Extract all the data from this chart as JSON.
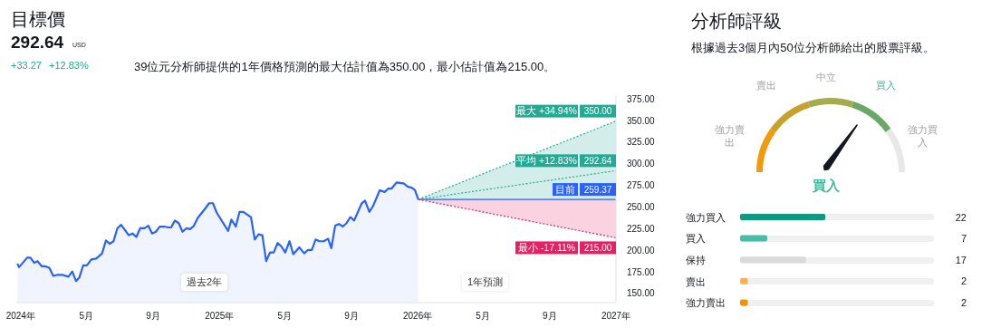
{
  "chart_data": [
    {
      "type": "line",
      "title": "目標價",
      "subtitle": "39位元分析師提供的1年價格預測的最大估計值為350.00，最小估計值為215.00。",
      "annotations": [
        "292.64",
        "USD",
        "+33.27",
        "+12.83%",
        "過去2年",
        "1年預測"
      ],
      "legend": "right",
      "xlim": [
        "2023-12-24",
        "2027-01-01"
      ],
      "xticks": [
        {
          "value": "2024-01-01",
          "label": "2024年"
        },
        {
          "value": "2024-05-01",
          "label": "5月"
        },
        {
          "value": "2024-09-01",
          "label": "9月"
        },
        {
          "value": "2025-01-01",
          "label": "2025年"
        },
        {
          "value": "2025-05-01",
          "label": "5月"
        },
        {
          "value": "2025-09-01",
          "label": "9月"
        },
        {
          "value": "2026-01-01",
          "label": "2026年"
        },
        {
          "value": "2026-05-01",
          "label": "5月"
        },
        {
          "value": "2026-09-01",
          "label": "9月"
        },
        {
          "value": "2027-01-01",
          "label": "2027年"
        }
      ],
      "ylim": [
        140,
        380
      ],
      "yticks": [
        {
          "value": 150,
          "label": "150.00"
        },
        {
          "value": 175,
          "label": "175.00"
        },
        {
          "value": 200,
          "label": "200.00"
        },
        {
          "value": 225,
          "label": "225.00"
        },
        {
          "value": 250,
          "label": "250.00"
        },
        {
          "value": 275,
          "label": "275.00"
        },
        {
          "value": 300,
          "label": "300.00"
        },
        {
          "value": 325,
          "label": "325.00"
        },
        {
          "value": 350,
          "label": "350.00"
        },
        {
          "value": 375,
          "label": "375.00"
        }
      ],
      "series": [
        {
          "type": "area",
          "color": "#2962ff",
          "x": [
            "2023-12-26",
            "2023-12-29",
            "2024-01-13",
            "2024-01-19",
            "2024-01-26",
            "2024-02-01",
            "2024-02-09",
            "2024-02-16",
            "2024-02-23",
            "2024-03-01",
            "2024-03-08",
            "2024-03-19",
            "2024-03-29",
            "2024-04-05",
            "2024-04-12",
            "2024-04-18",
            "2024-04-25",
            "2024-05-02",
            "2024-05-10",
            "2024-05-19",
            "2024-05-30",
            "2024-06-06",
            "2024-06-13",
            "2024-06-20",
            "2024-06-27",
            "2024-07-04",
            "2024-07-18",
            "2024-07-25",
            "2024-08-01",
            "2024-08-08",
            "2024-08-16",
            "2024-08-23",
            "2024-08-30",
            "2024-09-06",
            "2024-09-13",
            "2024-09-21",
            "2024-09-29",
            "2024-10-04",
            "2024-10-11",
            "2024-10-18",
            "2024-10-25",
            "2024-11-01",
            "2024-11-08",
            "2024-11-15",
            "2024-11-22",
            "2024-12-06",
            "2024-12-13",
            "2024-12-20",
            "2024-12-27",
            "2025-01-17",
            "2025-01-23",
            "2025-01-31",
            "2025-02-07",
            "2025-02-14",
            "2025-02-28",
            "2025-03-07",
            "2025-03-14",
            "2025-03-21",
            "2025-03-28",
            "2025-04-04",
            "2025-04-11",
            "2025-04-18",
            "2025-04-25",
            "2025-05-02",
            "2025-05-10",
            "2025-05-17",
            "2025-05-28",
            "2025-06-06",
            "2025-06-13",
            "2025-06-20",
            "2025-06-27",
            "2025-07-04",
            "2025-07-12",
            "2025-07-20",
            "2025-07-26",
            "2025-08-02",
            "2025-08-09",
            "2025-08-16",
            "2025-08-23",
            "2025-08-30",
            "2025-09-06",
            "2025-09-20",
            "2025-09-26",
            "2025-10-04",
            "2025-10-11",
            "2025-10-23",
            "2025-11-01",
            "2025-11-08",
            "2025-11-14",
            "2025-11-23",
            "2025-12-06",
            "2025-12-14",
            "2025-12-21",
            "2025-12-27",
            "2026-01-02"
          ],
          "values": [
            185,
            181,
            192,
            192,
            186,
            188,
            182,
            182,
            180,
            171,
            172,
            172,
            170,
            176,
            165,
            169,
            183,
            183,
            190,
            191,
            197,
            212,
            208,
            211,
            226,
            230,
            218,
            220,
            216,
            226,
            226,
            229,
            220,
            222,
            228,
            228,
            227,
            227,
            235,
            232,
            222,
            226,
            225,
            229,
            238,
            249,
            255,
            255,
            244,
            223,
            236,
            228,
            245,
            245,
            239,
            213,
            219,
            218,
            188,
            198,
            198,
            209,
            205,
            198,
            211,
            196,
            204,
            197,
            201,
            201,
            213,
            211,
            211,
            214,
            203,
            229,
            231,
            228,
            232,
            239,
            235,
            255,
            258,
            245,
            252,
            270,
            268,
            272,
            272,
            279,
            278,
            274,
            273,
            270,
            259.37
          ]
        },
        {
          "type": "line",
          "name": "最大 +34.94%",
          "color": "#22ab94",
          "line_style": "dotted",
          "x": [
            "2026-01-02",
            "2027-01-01"
          ],
          "values": [
            259.37,
            350
          ],
          "lower": [
            259.37,
            259.37
          ],
          "upper": [
            259.37,
            350
          ],
          "value_labels": [
            null,
            "350.00"
          ]
        },
        {
          "type": "line",
          "name": "平均 +12.83%",
          "color": "#22ab94",
          "line_style": "dotted",
          "x": [
            "2026-01-02",
            "2027-01-01"
          ],
          "values": [
            259.37,
            292.64
          ],
          "value_labels": [
            null,
            "292.64"
          ]
        },
        {
          "type": "line",
          "name": "目前",
          "color": "#2962ff",
          "line_style": "solid",
          "x": [
            "2026-01-02",
            "2027-01-01"
          ],
          "values": [
            259.37,
            259.37
          ],
          "value_labels": [
            null,
            "259.37"
          ]
        },
        {
          "type": "line",
          "name": "最小 -17.11%",
          "color": "#e91e63",
          "line_style": "dotted",
          "x": [
            "2026-01-02",
            "2027-01-01"
          ],
          "values": [
            259.37,
            215
          ],
          "lower": [
            259.37,
            215
          ],
          "upper": [
            259.37,
            259.37
          ],
          "value_labels": [
            null,
            "215.00"
          ]
        }
      ]
    },
    {
      "type": "donut",
      "title": "分析師評級",
      "subtitle": "根據過去3個月內50位分析師給出的股票評級。",
      "categories": [
        "強力賣出",
        "賣出",
        "中立",
        "買入",
        "強力買入"
      ],
      "values": [
        20,
        20,
        20,
        20,
        20
      ],
      "colors": [
        "#f29a0e",
        "#c6a22c",
        "#a3ad4c",
        "#6aa865",
        "#e8e8e8"
      ],
      "needle": "買入",
      "annotations": [
        "買入"
      ]
    },
    {
      "type": "bar",
      "orientation": "horizontal",
      "categories": [
        "強力買入",
        "買入",
        "保持",
        "賣出",
        "強力賣出"
      ],
      "values": [
        22,
        7,
        17,
        2,
        2
      ],
      "colors": [
        "#0e9a7e",
        "#45bea6",
        "#dadada",
        "#ffb347",
        "#f39200"
      ],
      "xlim": [
        0,
        50
      ],
      "data_labels": true
    }
  ]
}
